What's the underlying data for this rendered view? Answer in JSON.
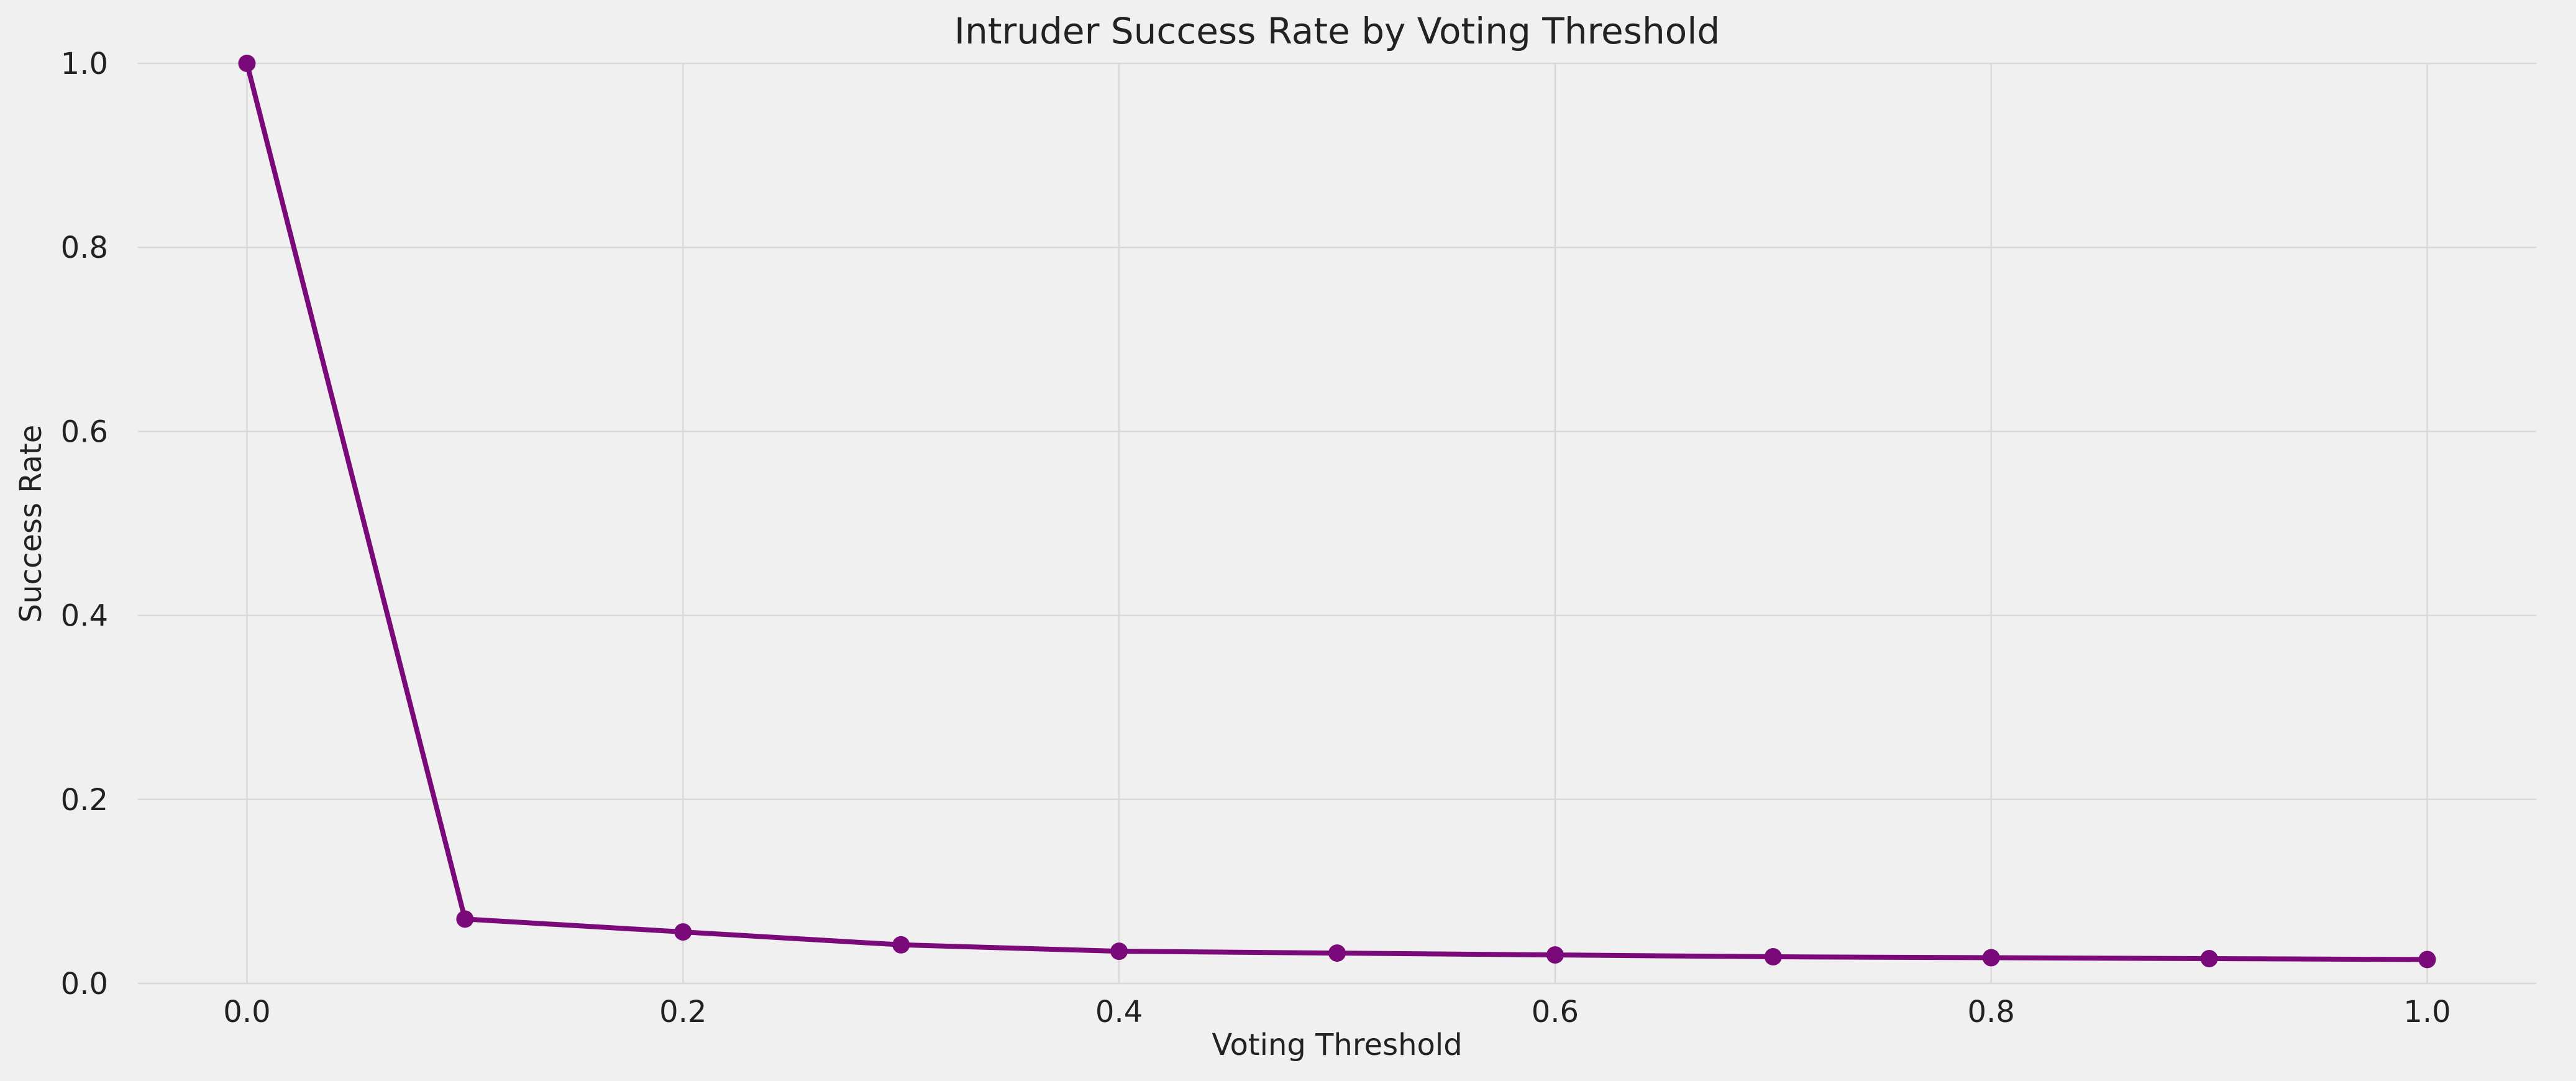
{
  "chart_data": {
    "type": "line",
    "title": "Intruder Success Rate by Voting Threshold",
    "xlabel": "Voting Threshold",
    "ylabel": "Success Rate",
    "xlim": [
      -0.05,
      1.05
    ],
    "ylim": [
      0.0,
      1.0
    ],
    "xticks": [
      "0.0",
      "0.2",
      "0.4",
      "0.6",
      "0.8",
      "1.0"
    ],
    "yticks": [
      "0.0",
      "0.2",
      "0.4",
      "0.6",
      "0.8",
      "1.0"
    ],
    "grid": true,
    "legend": "none",
    "series": [
      {
        "color": "#7a0a7a",
        "marker": "circle",
        "x": [
          0.0,
          0.1,
          0.2,
          0.3,
          0.4,
          0.5,
          0.6,
          0.7,
          0.8,
          0.9,
          1.0
        ],
        "y": [
          1.0,
          0.07,
          0.056,
          0.042,
          0.035,
          0.033,
          0.031,
          0.029,
          0.028,
          0.027,
          0.026
        ]
      }
    ]
  }
}
